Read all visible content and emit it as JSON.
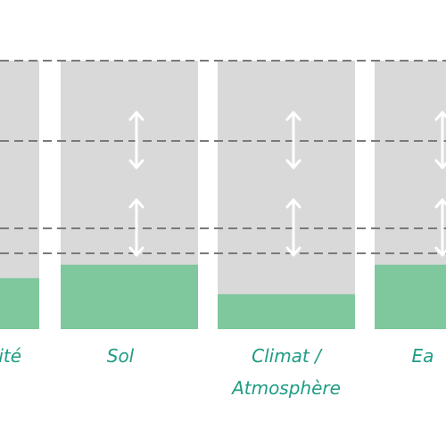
{
  "colors": {
    "bar_background": "#d9d9d9",
    "fill": "#7fc79d",
    "dashed_line": "#7a7a7a",
    "arrow": "#ffffff",
    "label": "#1f9c84"
  },
  "columns": [
    {
      "name": "column-biodiversite",
      "label": "sité",
      "label2": "",
      "fill_level": 0.19,
      "arrows": false
    },
    {
      "name": "column-sol",
      "label": "Sol",
      "label2": "",
      "fill_level": 0.24,
      "arrows": true
    },
    {
      "name": "column-climat",
      "label": "Climat /",
      "label2": "Atmosphère",
      "fill_level": 0.13,
      "arrows": true
    },
    {
      "name": "column-eau",
      "label": "Ea",
      "label2": "",
      "fill_level": 0.24,
      "arrows": true
    }
  ],
  "dashed_lines": 4,
  "arrow_icon": "double-headed-vertical-arrow-icon"
}
